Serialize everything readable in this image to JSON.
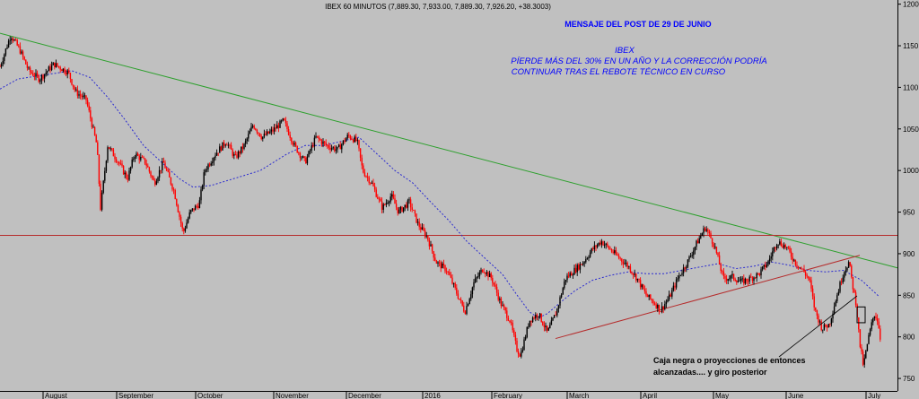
{
  "chart_data": {
    "type": "candlestick",
    "title": "IBEX 60 MINUTOS (7,889.30, 7,933.00, 7,889.30, 7,926.20, +38.3003)",
    "headline": "MENSAJE DEL POST DE 29 DE JUNIO",
    "annotation_lines": [
      "IBEX",
      "PÍERDE MÁS DEL 30% EN UN AÑO Y LA CORRECCIÓN PODRÍA",
      "CONTINUAR TRAS EL REBOTE TÉCNICO EN CURSO"
    ],
    "callout_lines": [
      "Caja negra o proyecciones de entonces",
      "alcanzadas.... y giro posterior"
    ],
    "y_ticks": [
      "1200",
      "1150",
      "1100",
      "1050",
      "1000",
      "950",
      "900",
      "850",
      "800",
      "750"
    ],
    "y_range": [
      735,
      1205
    ],
    "x_range": [
      0,
      1000
    ],
    "x_months": [
      {
        "label": "August",
        "x": 48
      },
      {
        "label": "September",
        "x": 130
      },
      {
        "label": "October",
        "x": 218
      },
      {
        "label": "November",
        "x": 305
      },
      {
        "label": "December",
        "x": 386
      },
      {
        "label": "2016",
        "x": 471
      },
      {
        "label": "February",
        "x": 548
      },
      {
        "label": "March",
        "x": 632
      },
      {
        "label": "April",
        "x": 714
      },
      {
        "label": "May",
        "x": 795
      },
      {
        "label": "June",
        "x": 876
      },
      {
        "label": "July",
        "x": 965
      }
    ],
    "price_path": [
      [
        0,
        1125
      ],
      [
        12,
        1163
      ],
      [
        22,
        1145
      ],
      [
        32,
        1120
      ],
      [
        44,
        1110
      ],
      [
        60,
        1128
      ],
      [
        76,
        1118
      ],
      [
        84,
        1095
      ],
      [
        96,
        1085
      ],
      [
        108,
        1030
      ],
      [
        112,
        955
      ],
      [
        120,
        1030
      ],
      [
        132,
        1010
      ],
      [
        142,
        990
      ],
      [
        150,
        1020
      ],
      [
        162,
        1010
      ],
      [
        172,
        985
      ],
      [
        182,
        1010
      ],
      [
        194,
        975
      ],
      [
        204,
        925
      ],
      [
        212,
        950
      ],
      [
        222,
        960
      ],
      [
        228,
        1000
      ],
      [
        240,
        1020
      ],
      [
        252,
        1035
      ],
      [
        262,
        1015
      ],
      [
        272,
        1030
      ],
      [
        282,
        1055
      ],
      [
        292,
        1040
      ],
      [
        304,
        1048
      ],
      [
        316,
        1060
      ],
      [
        328,
        1030
      ],
      [
        340,
        1010
      ],
      [
        352,
        1040
      ],
      [
        364,
        1030
      ],
      [
        376,
        1025
      ],
      [
        388,
        1042
      ],
      [
        398,
        1035
      ],
      [
        404,
        1000
      ],
      [
        414,
        985
      ],
      [
        426,
        955
      ],
      [
        436,
        970
      ],
      [
        444,
        950
      ],
      [
        456,
        962
      ],
      [
        466,
        935
      ],
      [
        476,
        920
      ],
      [
        486,
        890
      ],
      [
        498,
        880
      ],
      [
        508,
        855
      ],
      [
        518,
        830
      ],
      [
        528,
        865
      ],
      [
        538,
        882
      ],
      [
        548,
        870
      ],
      [
        558,
        840
      ],
      [
        568,
        820
      ],
      [
        576,
        785
      ],
      [
        580,
        778
      ],
      [
        590,
        820
      ],
      [
        600,
        828
      ],
      [
        610,
        805
      ],
      [
        620,
        830
      ],
      [
        630,
        870
      ],
      [
        640,
        880
      ],
      [
        650,
        890
      ],
      [
        660,
        905
      ],
      [
        670,
        915
      ],
      [
        680,
        905
      ],
      [
        690,
        895
      ],
      [
        700,
        885
      ],
      [
        710,
        870
      ],
      [
        720,
        850
      ],
      [
        730,
        840
      ],
      [
        736,
        832
      ],
      [
        746,
        848
      ],
      [
        756,
        872
      ],
      [
        766,
        890
      ],
      [
        776,
        912
      ],
      [
        786,
        932
      ],
      [
        796,
        910
      ],
      [
        806,
        870
      ],
      [
        816,
        872
      ],
      [
        826,
        866
      ],
      [
        836,
        870
      ],
      [
        846,
        876
      ],
      [
        856,
        890
      ],
      [
        866,
        915
      ],
      [
        876,
        908
      ],
      [
        886,
        890
      ],
      [
        896,
        878
      ],
      [
        902,
        868
      ],
      [
        908,
        832
      ],
      [
        916,
        810
      ],
      [
        924,
        815
      ],
      [
        930,
        840
      ],
      [
        940,
        878
      ],
      [
        946,
        890
      ],
      [
        950,
        862
      ],
      [
        954,
        840
      ],
      [
        958,
        792
      ],
      [
        962,
        765
      ],
      [
        968,
        800
      ],
      [
        974,
        828
      ],
      [
        978,
        820
      ],
      [
        982,
        790
      ]
    ],
    "moving_average": [
      [
        0,
        1098
      ],
      [
        20,
        1110
      ],
      [
        50,
        1115
      ],
      [
        80,
        1120
      ],
      [
        100,
        1112
      ],
      [
        120,
        1088
      ],
      [
        140,
        1060
      ],
      [
        160,
        1030
      ],
      [
        180,
        1010
      ],
      [
        200,
        990
      ],
      [
        215,
        980
      ],
      [
        235,
        982
      ],
      [
        260,
        990
      ],
      [
        290,
        1000
      ],
      [
        320,
        1020
      ],
      [
        340,
        1030
      ],
      [
        360,
        1030
      ],
      [
        380,
        1035
      ],
      [
        400,
        1040
      ],
      [
        420,
        1020
      ],
      [
        440,
        1000
      ],
      [
        460,
        985
      ],
      [
        480,
        962
      ],
      [
        500,
        940
      ],
      [
        520,
        915
      ],
      [
        540,
        895
      ],
      [
        560,
        875
      ],
      [
        575,
        852
      ],
      [
        590,
        830
      ],
      [
        600,
        823
      ],
      [
        610,
        828
      ],
      [
        625,
        842
      ],
      [
        640,
        855
      ],
      [
        660,
        868
      ],
      [
        680,
        874
      ],
      [
        700,
        878
      ],
      [
        720,
        876
      ],
      [
        740,
        876
      ],
      [
        760,
        880
      ],
      [
        780,
        884
      ],
      [
        800,
        888
      ],
      [
        820,
        882
      ],
      [
        840,
        885
      ],
      [
        860,
        890
      ],
      [
        880,
        886
      ],
      [
        900,
        880
      ],
      [
        920,
        878
      ],
      [
        940,
        880
      ],
      [
        960,
        868
      ],
      [
        980,
        848
      ]
    ],
    "trend_lines": [
      {
        "name": "green-resistance",
        "color": "#2ea02e",
        "from": [
          0,
          1165
        ],
        "to": [
          1000,
          883
        ]
      },
      {
        "name": "red-horizontal",
        "color": "#b52b2b",
        "from": [
          0,
          922
        ],
        "to": [
          1000,
          922
        ]
      },
      {
        "name": "red-support",
        "color": "#b52b2b",
        "from": [
          619,
          798
        ],
        "to": [
          958,
          898
        ]
      }
    ],
    "box": {
      "x": [
        955,
        964
      ],
      "y": [
        817,
        836
      ],
      "color": "#000000"
    },
    "colors": {
      "background": "#c0c0c0",
      "up": "#000000",
      "down": "#ff0000",
      "moving_average": "#2a2ad0",
      "headline": "#0000ff",
      "annotation": "#0000ff"
    }
  }
}
